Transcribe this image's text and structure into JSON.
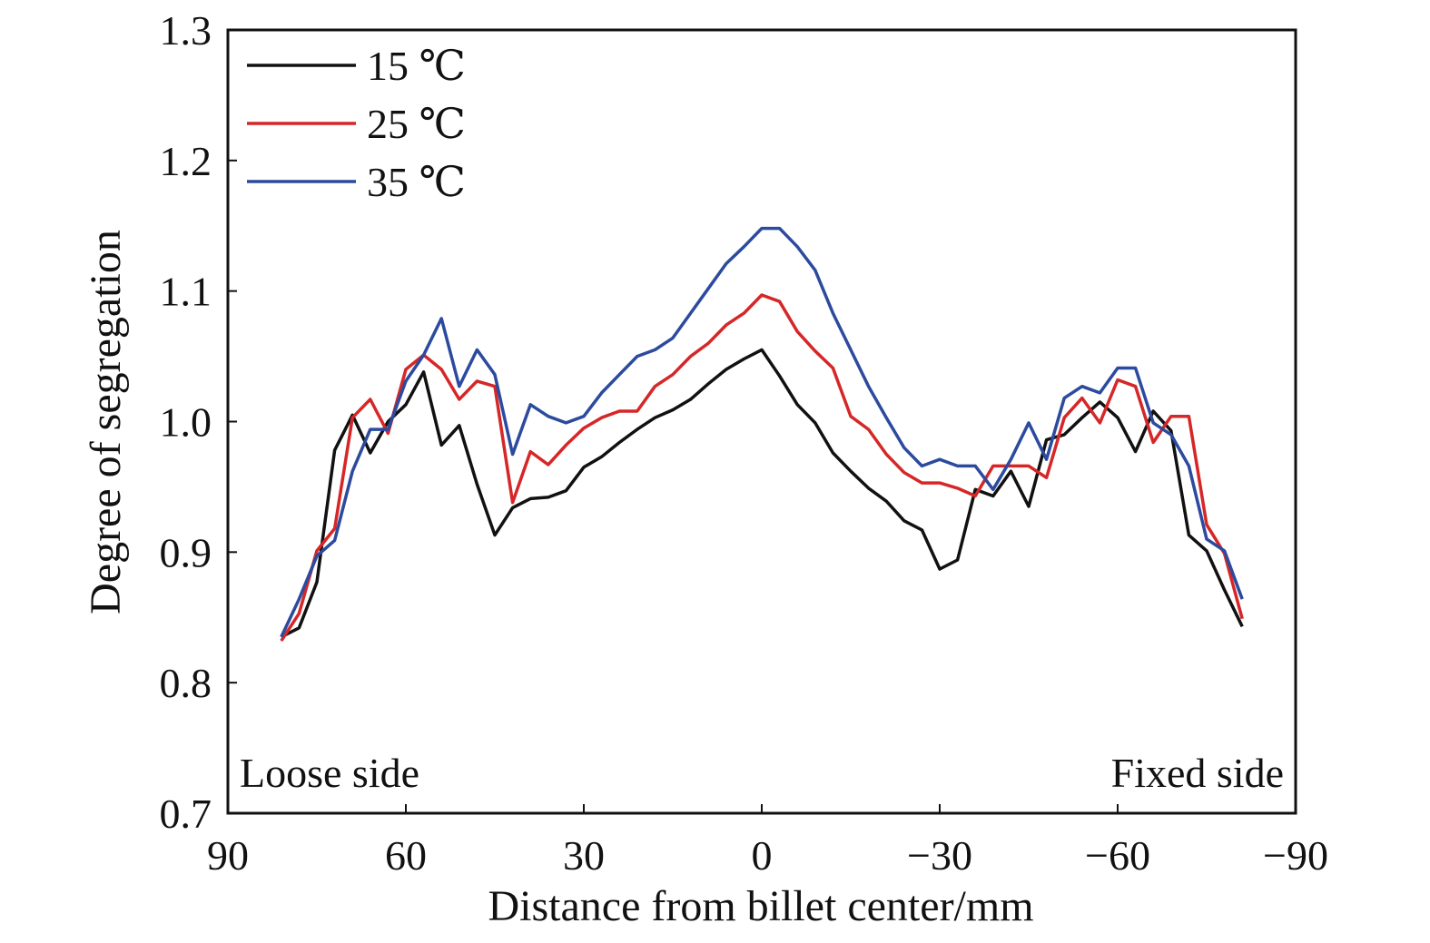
{
  "chart_data": {
    "type": "line",
    "xlabel": "Distance from billet center/mm",
    "ylabel": "Degree of segregation",
    "xlim": [
      90,
      -90
    ],
    "ylim": [
      0.7,
      1.3
    ],
    "x_ticks": [
      90,
      60,
      30,
      0,
      -30,
      -60,
      -90
    ],
    "x_tick_labels": [
      "90",
      "60",
      "30",
      "0",
      "−30",
      "−60",
      "−90"
    ],
    "y_ticks": [
      0.7,
      0.8,
      0.9,
      1.0,
      1.1,
      1.2,
      1.3
    ],
    "y_tick_labels": [
      "0.7",
      "0.8",
      "0.9",
      "1.0",
      "1.1",
      "1.2",
      "1.3"
    ],
    "grid": false,
    "legend_position": "top-left",
    "annotations": [
      {
        "text": "Loose side",
        "position": "bottom-left"
      },
      {
        "text": "Fixed side",
        "position": "bottom-right"
      }
    ],
    "series": [
      {
        "name": "15 ℃",
        "color": "#111111",
        "x": [
          81,
          78,
          75,
          72,
          69,
          66,
          63,
          60,
          57,
          54,
          51,
          48,
          45,
          42,
          39,
          36,
          33,
          30,
          27,
          24,
          21,
          18,
          15,
          12,
          9,
          6,
          3,
          0,
          -3,
          -6,
          -9,
          -12,
          -15,
          -18,
          -21,
          -24,
          -27,
          -30,
          -33,
          -36,
          -39,
          -42,
          -45,
          -48,
          -51,
          -54,
          -57,
          -60,
          -63,
          -66,
          -69,
          -72,
          -75,
          -78,
          -81
        ],
        "y": [
          0.835,
          0.842,
          0.877,
          0.978,
          1.005,
          0.976,
          1.0,
          1.013,
          1.038,
          0.982,
          0.997,
          0.952,
          0.913,
          0.934,
          0.941,
          0.942,
          0.947,
          0.965,
          0.973,
          0.984,
          0.994,
          1.003,
          1.009,
          1.017,
          1.029,
          1.04,
          1.048,
          1.055,
          1.035,
          1.013,
          0.999,
          0.976,
          0.962,
          0.949,
          0.939,
          0.924,
          0.917,
          0.887,
          0.894,
          0.948,
          0.943,
          0.962,
          0.935,
          0.986,
          0.99,
          1.003,
          1.015,
          1.003,
          0.977,
          1.008,
          0.993,
          0.913,
          0.901,
          0.871,
          0.843
        ]
      },
      {
        "name": "25 ℃",
        "color": "#d62728",
        "x": [
          81,
          78,
          75,
          72,
          69,
          66,
          63,
          60,
          57,
          54,
          51,
          48,
          45,
          42,
          39,
          36,
          33,
          30,
          27,
          24,
          21,
          18,
          15,
          12,
          9,
          6,
          3,
          0,
          -3,
          -6,
          -9,
          -12,
          -15,
          -18,
          -21,
          -24,
          -27,
          -30,
          -33,
          -36,
          -39,
          -42,
          -45,
          -48,
          -51,
          -54,
          -57,
          -60,
          -63,
          -66,
          -69,
          -72,
          -75,
          -78,
          -81
        ],
        "y": [
          0.832,
          0.853,
          0.901,
          0.918,
          1.003,
          1.017,
          0.991,
          1.04,
          1.051,
          1.04,
          1.017,
          1.031,
          1.027,
          0.938,
          0.977,
          0.967,
          0.982,
          0.995,
          1.003,
          1.008,
          1.008,
          1.027,
          1.036,
          1.05,
          1.06,
          1.074,
          1.083,
          1.097,
          1.092,
          1.069,
          1.054,
          1.041,
          1.004,
          0.994,
          0.975,
          0.961,
          0.953,
          0.953,
          0.949,
          0.943,
          0.966,
          0.966,
          0.966,
          0.957,
          1.003,
          1.018,
          0.999,
          1.032,
          1.027,
          0.984,
          1.004,
          1.004,
          0.921,
          0.899,
          0.849
        ]
      },
      {
        "name": "35 ℃",
        "color": "#2c4a9e",
        "x": [
          81,
          78,
          75,
          72,
          69,
          66,
          63,
          60,
          57,
          54,
          51,
          48,
          45,
          42,
          39,
          36,
          33,
          30,
          27,
          24,
          21,
          18,
          15,
          12,
          9,
          6,
          3,
          0,
          -3,
          -6,
          -9,
          -12,
          -15,
          -18,
          -21,
          -24,
          -27,
          -30,
          -33,
          -36,
          -39,
          -42,
          -45,
          -48,
          -51,
          -54,
          -57,
          -60,
          -63,
          -66,
          -69,
          -72,
          -75,
          -78,
          -81
        ],
        "y": [
          0.835,
          0.864,
          0.897,
          0.909,
          0.962,
          0.994,
          0.994,
          1.031,
          1.051,
          1.079,
          1.027,
          1.055,
          1.036,
          0.975,
          1.013,
          1.004,
          0.999,
          1.004,
          1.022,
          1.036,
          1.05,
          1.055,
          1.064,
          1.083,
          1.102,
          1.121,
          1.134,
          1.148,
          1.148,
          1.134,
          1.116,
          1.083,
          1.055,
          1.027,
          1.003,
          0.98,
          0.966,
          0.971,
          0.966,
          0.966,
          0.948,
          0.971,
          0.999,
          0.971,
          1.018,
          1.027,
          1.022,
          1.041,
          1.041,
          0.999,
          0.99,
          0.966,
          0.91,
          0.901,
          0.864
        ]
      }
    ]
  }
}
